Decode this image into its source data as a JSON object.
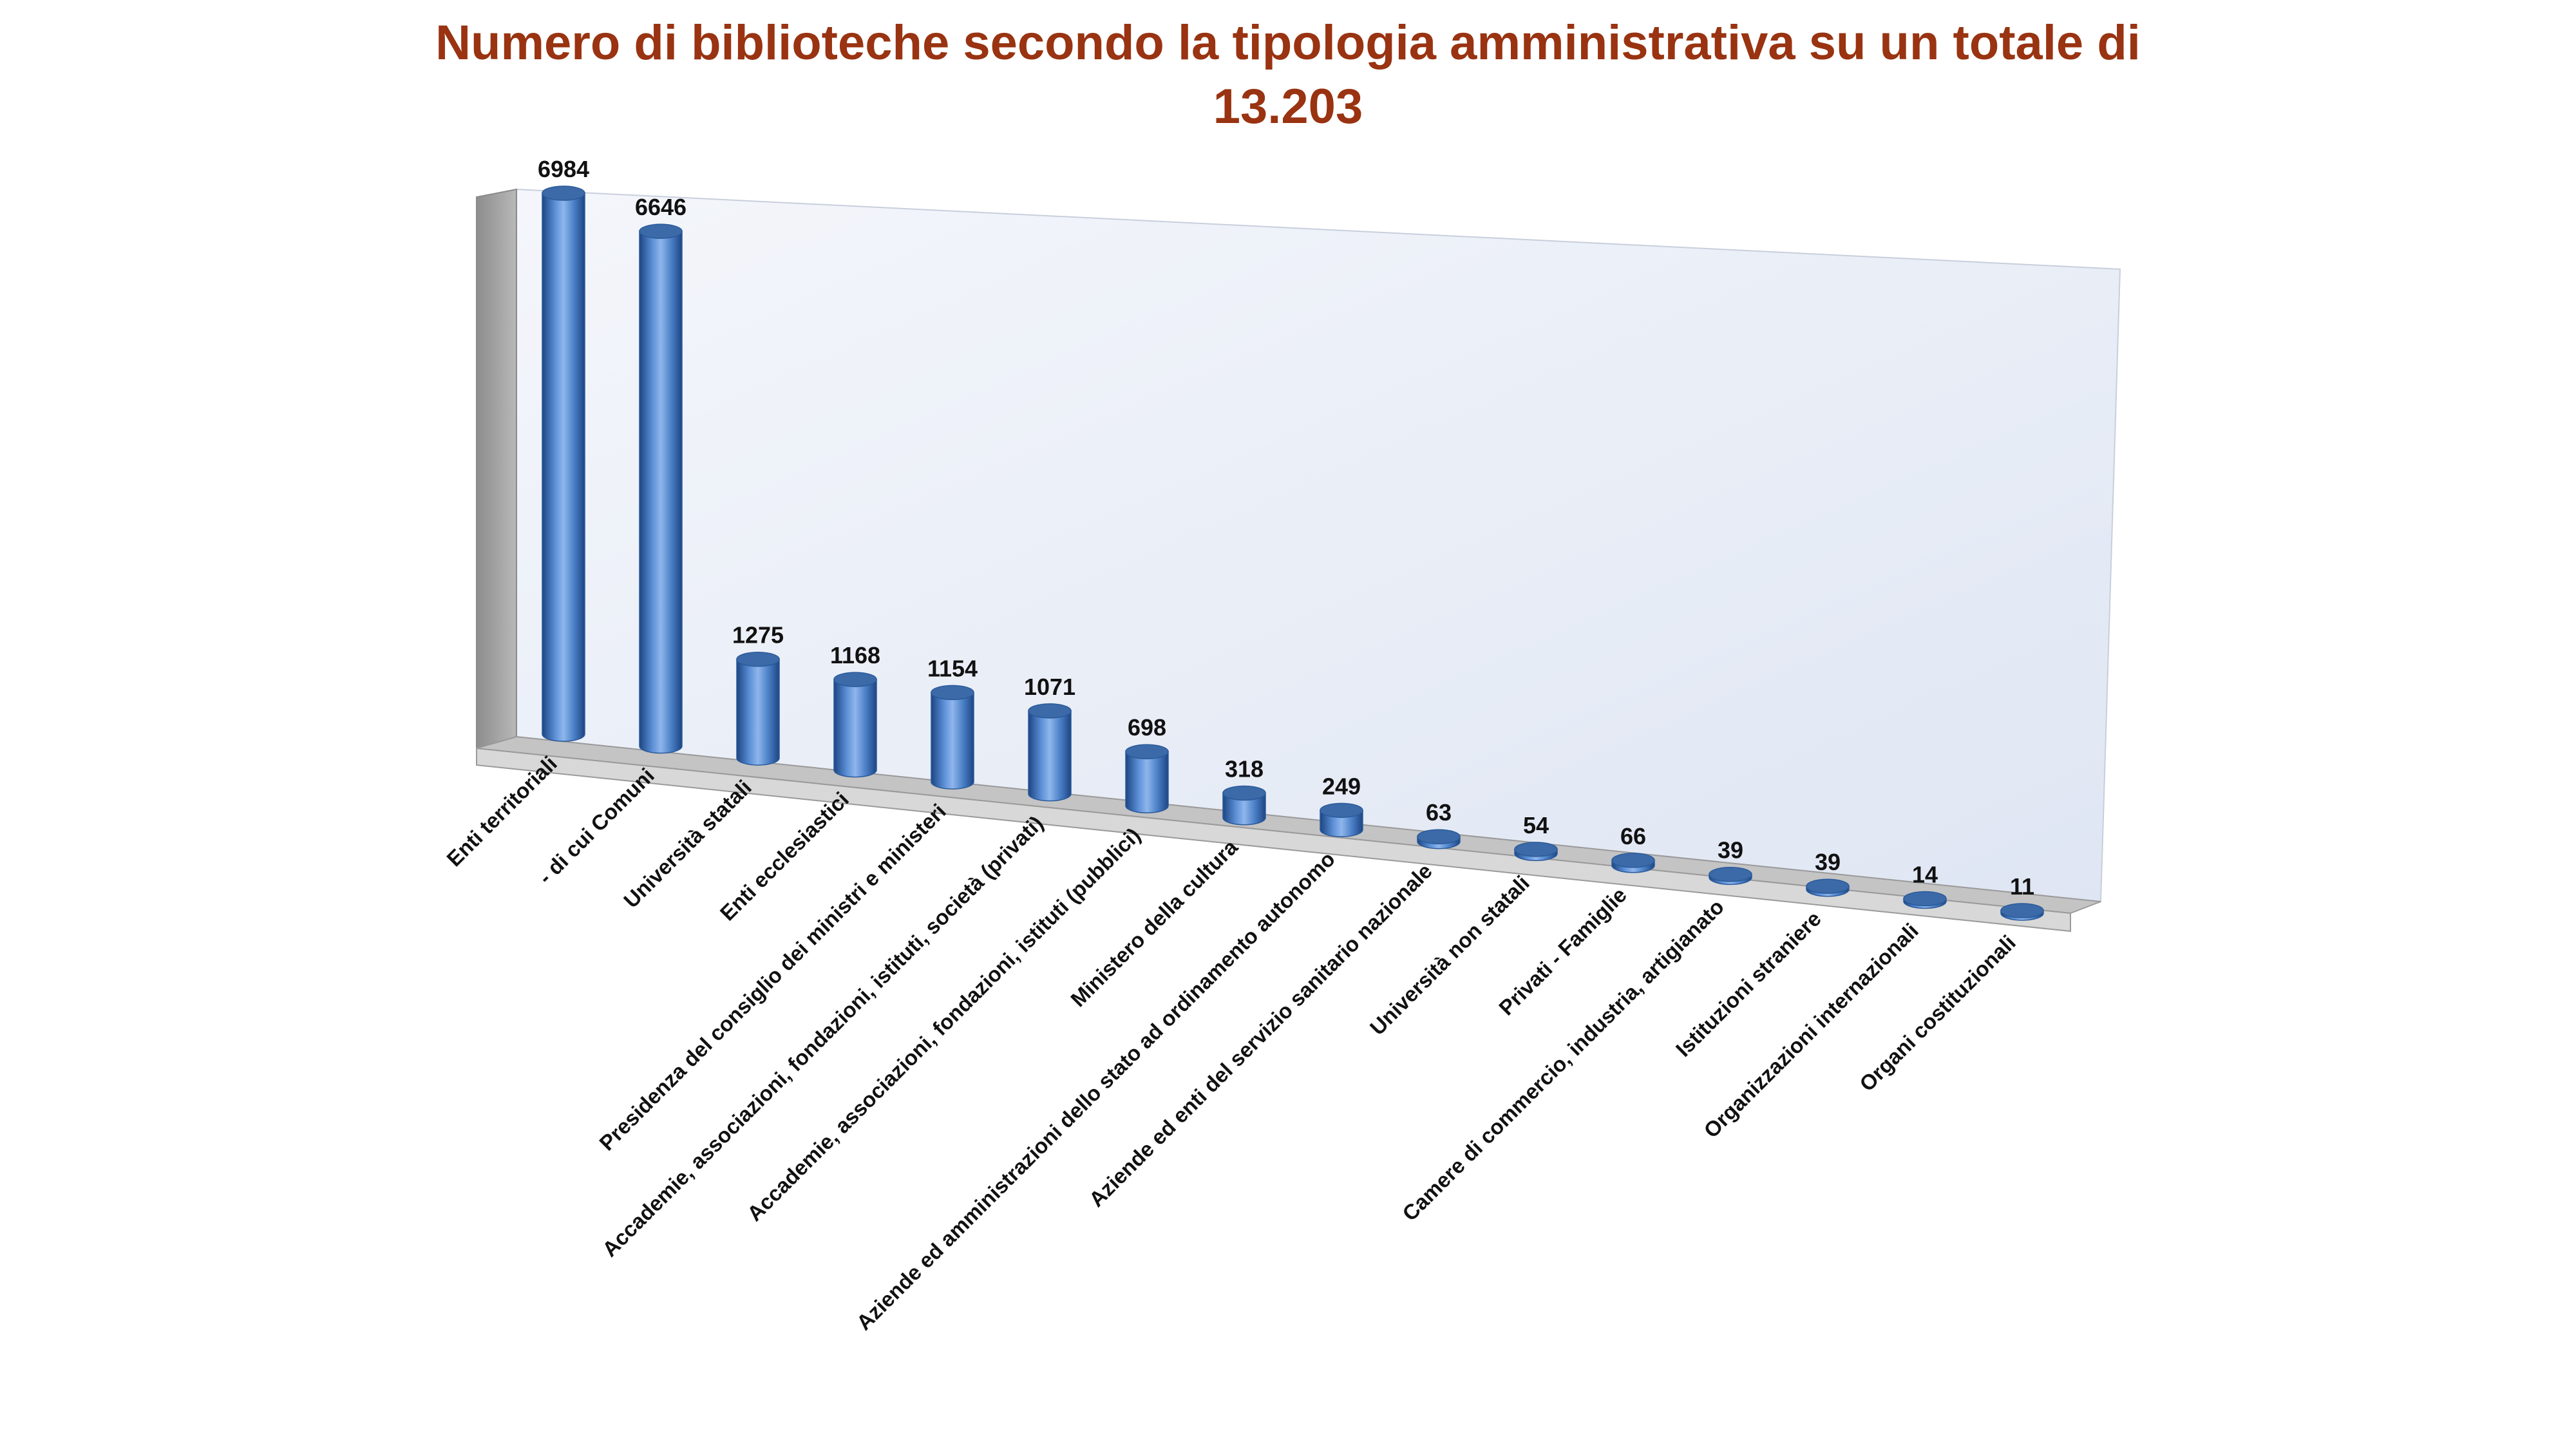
{
  "chart_data": {
    "type": "bar",
    "style": "3d-cylinder",
    "title": "Numero di biblioteche secondo la tipologia amministrativa su un totale di 13.203",
    "categories": [
      "Enti territoriali",
      "- di cui Comuni",
      "Università statali",
      "Enti ecclesiastici",
      "Presidenza del consiglio dei ministri e ministeri",
      "Accademie, associazioni, fondazioni, istituti, società (privati)",
      "Accademie, associazioni, fondazioni, istituti (pubblici)",
      "Ministero della cultura",
      "Aziende ed amministrazioni dello stato ad ordinamento autonomo",
      "Aziende ed enti del servizio sanitario nazionale",
      "Università non statali",
      "Privati - Famiglie",
      "Camere di commercio, industria, artigianato",
      "Istituzioni straniere",
      "Organizzazioni internazionali",
      "Organi costituzionali"
    ],
    "values": [
      6984,
      6646,
      1275,
      1168,
      1154,
      1071,
      698,
      318,
      249,
      63,
      54,
      66,
      39,
      39,
      14,
      11
    ],
    "ylim": [
      0,
      7000
    ],
    "grid": false,
    "legend": "none",
    "data_labels": true,
    "colors": {
      "bar_body": "#4f81bd",
      "bar_top": "#3c6aa8",
      "title": "#993311",
      "back_wall": "#e9eef8",
      "side_wall": "#a6a6a6",
      "floor": "#bfbfbf"
    }
  }
}
